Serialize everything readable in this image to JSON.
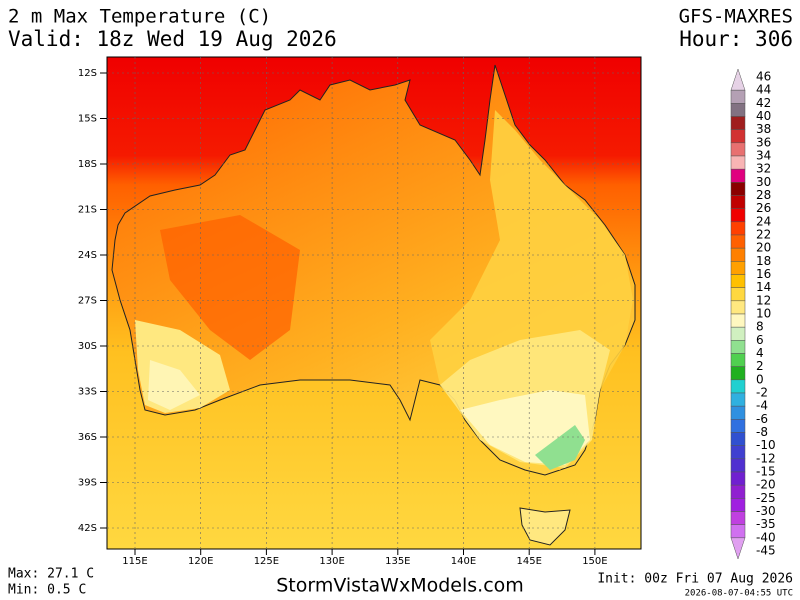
{
  "header": {
    "title": "2 m Max Temperature (C)",
    "valid": "Valid: 18z Wed 19 Aug 2026",
    "model": "GFS-MAXRES",
    "hour": "Hour: 306"
  },
  "map": {
    "lat_labels": [
      "12S",
      "15S",
      "18S",
      "21S",
      "24S",
      "27S",
      "30S",
      "33S",
      "36S",
      "39S",
      "42S"
    ],
    "lon_labels": [
      "115E",
      "120E",
      "125E",
      "130E",
      "135E",
      "140E",
      "145E",
      "150E"
    ]
  },
  "colorbar": {
    "labels": [
      "46",
      "44",
      "42",
      "40",
      "38",
      "36",
      "34",
      "32",
      "30",
      "28",
      "26",
      "24",
      "22",
      "20",
      "18",
      "16",
      "14",
      "12",
      "10",
      "8",
      "6",
      "4",
      "2",
      "0",
      "-2",
      "-4",
      "-6",
      "-8",
      "-10",
      "-12",
      "-15",
      "-20",
      "-25",
      "-30",
      "-35",
      "-40",
      "-45"
    ],
    "colors": [
      "#e6d2e6",
      "#b4a0b4",
      "#827282",
      "#a01e1e",
      "#d23232",
      "#e87070",
      "#f8b4b4",
      "#e0007f",
      "#8b0000",
      "#c00000",
      "#f00000",
      "#ff4000",
      "#ff6000",
      "#ff8000",
      "#ffa000",
      "#ffc000",
      "#ffd840",
      "#ffe880",
      "#fff8c0",
      "#d0f0c0",
      "#90e090",
      "#50d050",
      "#20b020",
      "#20d0d0",
      "#30b0e0",
      "#3090e0",
      "#3070e0",
      "#3050d0",
      "#4040d0",
      "#5030d0",
      "#7020d0",
      "#9020d0",
      "#a020e0",
      "#c040e0",
      "#d070f0",
      "#e0a0f0"
    ]
  },
  "footer": {
    "max": "Max: 27.1 C",
    "min": "Min: 0.5 C",
    "site": "StormVistaWxModels.com",
    "init": "Init: 00z Fri 07 Aug 2026",
    "stamp": "2026-08-07-04:55 UTC"
  }
}
